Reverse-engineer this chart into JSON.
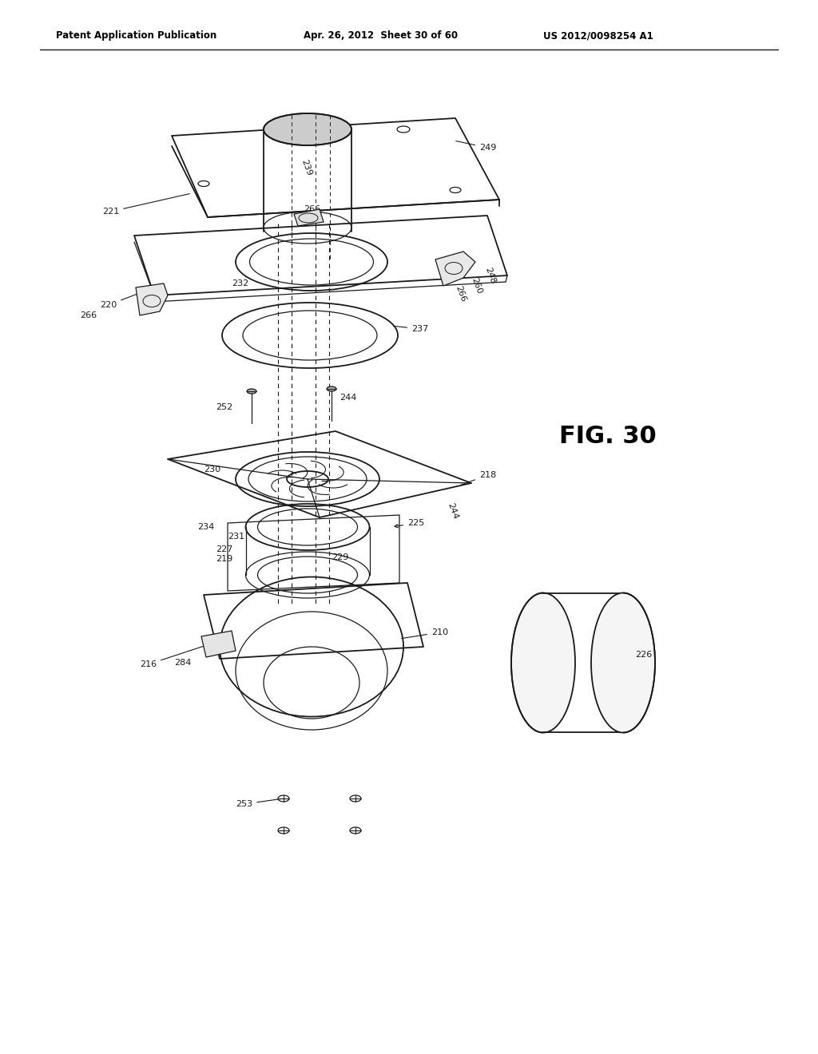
{
  "title": "Patent Application Publication",
  "date": "Apr. 26, 2012",
  "sheet": "Sheet 30 of 60",
  "patent_num": "US 2012/0098254 A1",
  "fig_label": "FIG. 30",
  "background": "#ffffff",
  "line_color": "#1a1a1a",
  "header_fontsize": 8.5,
  "fig_fontsize": 22,
  "label_fontsize": 8
}
